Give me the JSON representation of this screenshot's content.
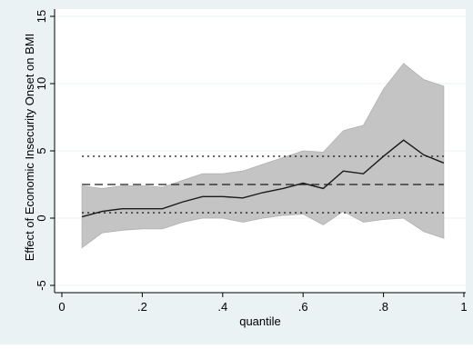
{
  "chart_data": {
    "type": "line",
    "xlabel": "quantile",
    "ylabel": "Effect of Economic Insecurity Onset on BMI",
    "xlim": [
      0,
      1
    ],
    "ylim": [
      -5,
      15
    ],
    "x_ticks": [
      {
        "value": 0,
        "label": "0"
      },
      {
        "value": 0.2,
        "label": ".2"
      },
      {
        "value": 0.4,
        "label": ".4"
      },
      {
        "value": 0.6,
        "label": ".6"
      },
      {
        "value": 0.8,
        "label": ".8"
      },
      {
        "value": 1,
        "label": "1"
      }
    ],
    "y_ticks": [
      {
        "value": -5,
        "label": "-5"
      },
      {
        "value": 0,
        "label": "0"
      },
      {
        "value": 5,
        "label": "5"
      },
      {
        "value": 10,
        "label": "10"
      },
      {
        "value": 15,
        "label": "15"
      }
    ],
    "grid": true,
    "x": [
      0.05,
      0.1,
      0.15,
      0.2,
      0.25,
      0.3,
      0.35,
      0.4,
      0.45,
      0.5,
      0.55,
      0.6,
      0.65,
      0.7,
      0.75,
      0.8,
      0.85,
      0.9,
      0.95
    ],
    "series": [
      {
        "role": "quantile_estimate",
        "style": "solid",
        "values": [
          0.1,
          0.5,
          0.7,
          0.7,
          0.7,
          1.2,
          1.6,
          1.6,
          1.5,
          1.9,
          2.2,
          2.6,
          2.2,
          3.5,
          3.3,
          4.6,
          5.8,
          4.7,
          4.1
        ]
      }
    ],
    "confidence_band": {
      "lower": [
        -2.2,
        -1.1,
        -0.9,
        -0.8,
        -0.8,
        -0.3,
        0.0,
        0.0,
        -0.3,
        0.0,
        0.2,
        0.3,
        -0.5,
        0.5,
        -0.3,
        -0.1,
        0.0,
        -1.0,
        -1.5
      ],
      "upper": [
        2.4,
        2.2,
        2.4,
        2.4,
        2.3,
        2.8,
        3.3,
        3.3,
        3.5,
        4.0,
        4.5,
        5.0,
        4.9,
        6.5,
        6.9,
        9.6,
        11.5,
        10.3,
        9.8
      ]
    },
    "reference_lines": [
      {
        "role": "estimate",
        "style": "dashed",
        "y": 2.5
      },
      {
        "role": "ci_upper",
        "style": "dotted",
        "y": 4.6
      },
      {
        "role": "ci_lower",
        "style": "dotted",
        "y": 0.4
      }
    ],
    "colors": {
      "outer_background": "#eaf2f3",
      "plot_background": "#ffffff",
      "band_fill": "#c4c4c4",
      "band_stroke": "#b0b0b0",
      "line": "#1a1a1a",
      "grid": "#eaf2f3",
      "axis": "#000000"
    }
  }
}
